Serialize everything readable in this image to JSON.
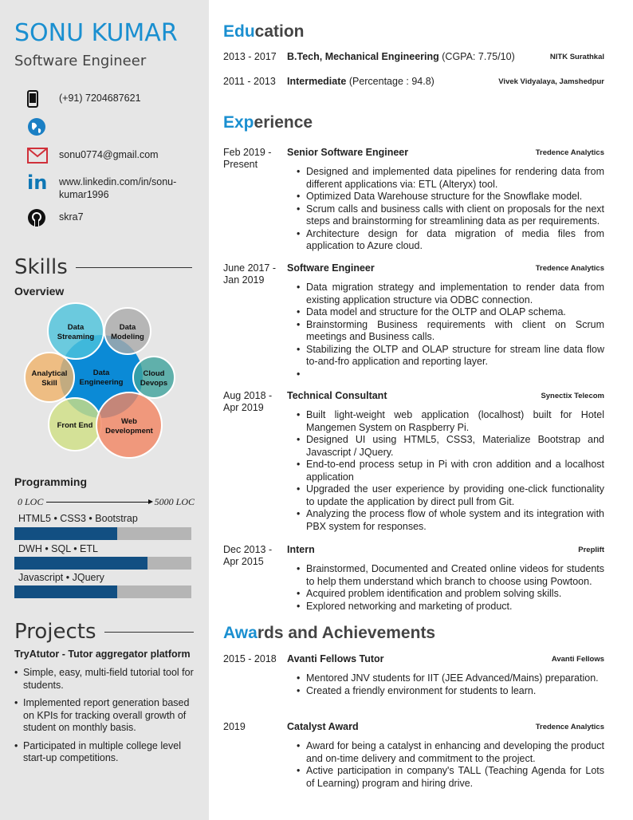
{
  "sidebar": {
    "name": "SONU KUMAR",
    "role": "Software Engineer",
    "contacts": [
      {
        "icon": "phone-icon",
        "text": "(+91) 7204687621"
      },
      {
        "icon": "globe-icon",
        "text": ""
      },
      {
        "icon": "email-icon",
        "text": "sonu0774@gmail.com"
      },
      {
        "icon": "linkedin-icon",
        "text": "www.linkedin.com/in/sonu-kumar1996"
      },
      {
        "icon": "github-icon",
        "text": "skra7"
      }
    ],
    "skills_title": "Skills",
    "overview_title": "Overview",
    "venn": {
      "center": [
        "Data",
        "Engineering"
      ],
      "items": [
        [
          "Data",
          "Streaming"
        ],
        [
          "Data",
          "Modeling"
        ],
        [
          "Analytical",
          "Skill"
        ],
        [
          "Cloud",
          "Devops"
        ],
        [
          "Front End"
        ],
        [
          "Web",
          "Development"
        ]
      ]
    },
    "programming_title": "Programming",
    "scale_min": "0 LOC",
    "scale_max": "5000 LOC",
    "bars": [
      {
        "label": "HTML5 • CSS3 • Bootstrap",
        "fraction": 0.58
      },
      {
        "label": "DWH • SQL • ETL",
        "fraction": 0.75
      },
      {
        "label": "Javascript • JQuery",
        "fraction": 0.58
      }
    ],
    "projects_title": "Projects",
    "project_name": "TryAtutor - Tutor aggregator platform",
    "project_bullets": [
      "Simple, easy, multi-field tutorial tool for students.",
      "Implemented report generation based on KPIs for tracking overall growth of student on monthly basis.",
      "Participated in multiple college level start-up competitions."
    ]
  },
  "education": {
    "title_accent": "Edu",
    "title_rest": "cation",
    "rows": [
      {
        "dates": "2013 - 2017",
        "degree": "B.Tech, Mechanical Engineering",
        "detail": " (CGPA: 7.75/10)",
        "school": "NITK Surathkal"
      },
      {
        "dates": "2011 - 2013",
        "degree": "Intermediate",
        "detail": " (Percentage : 94.8)",
        "school": "Vivek Vidyalaya, Jamshedpur"
      }
    ]
  },
  "experience": {
    "title_accent": "Exp",
    "title_rest": "erience",
    "entries": [
      {
        "dates": [
          "Feb 2019 -",
          "Present"
        ],
        "title": "Senior Software Engineer",
        "org": "Tredence Analytics",
        "bullets": [
          "Designed and implemented data pipelines for rendering data from different applications via: ETL (Alteryx) tool.",
          "Optimized Data Warehouse structure for the Snowflake model.",
          "Scrum calls and business calls with client on proposals for the next steps and brainstorming for streamlining data as per requirements.",
          "Architecture design for data migration of media files from application to Azure cloud."
        ]
      },
      {
        "dates": [
          "June 2017 -",
          "Jan 2019"
        ],
        "title": "Software Engineer",
        "org": "Tredence Analytics",
        "bullets": [
          "Data migration strategy and implementation to render data from existing application structure via ODBC connection.",
          "Data model and structure for the OLTP and OLAP schema.",
          "Brainstorming Business requirements with client on Scrum meetings and Business calls.",
          "Stabilizing the OLTP and OLAP structure for stream line data flow to-and-fro application and reporting layer.",
          ""
        ]
      },
      {
        "dates": [
          "Aug 2018 -",
          "Apr 2019"
        ],
        "title": "Technical Consultant",
        "org": "Synectix Telecom",
        "bullets": [
          "Built light-weight web application (localhost) built for Hotel Mangemen System on Raspberry Pi.",
          "Designed UI using HTML5, CSS3, Materialize Bootstrap and Javascript / JQuery.",
          "End-to-end process setup in Pi with cron addition and a localhost application",
          "Upgraded the user experience by providing one-click functionality to update the application by direct pull from Git.",
          "Analyzing the process flow of whole system and its integration with PBX system for responses."
        ]
      },
      {
        "dates": [
          "Dec 2013 -",
          "Apr 2015"
        ],
        "title": "Intern",
        "org": "Preplift",
        "bullets": [
          "Brainstormed, Documented and Created online videos for students to help them understand which branch to choose using Powtoon.",
          "Acquired problem identification and problem solving skills.",
          "Explored networking and marketing of product."
        ]
      }
    ]
  },
  "awards": {
    "title_accent": "Awa",
    "title_rest": "rds and Achievements",
    "entries": [
      {
        "dates": [
          "2015 - 2018"
        ],
        "title": "Avanti Fellows Tutor",
        "org": "Avanti Fellows",
        "bullets": [
          "Mentored JNV students for IIT (JEE Advanced/Mains) preparation.",
          "Created a friendly environment for students to learn."
        ]
      },
      {
        "dates": [
          "2019"
        ],
        "title": "Catalyst Award",
        "org": "Tredence Analytics",
        "bullets": [
          "Award for being a catalyst in enhancing and developing the product and on-time delivery and commitment to the project.",
          "Active participation in company's TALL (Teaching Agenda for Lots of Learning) program and hiring drive."
        ]
      }
    ]
  },
  "colors": {
    "accent": "#1a8fd0",
    "sidebar": "#e6e6e6",
    "bar_fill": "#124f82",
    "bar_bg": "#b5b5b5"
  }
}
